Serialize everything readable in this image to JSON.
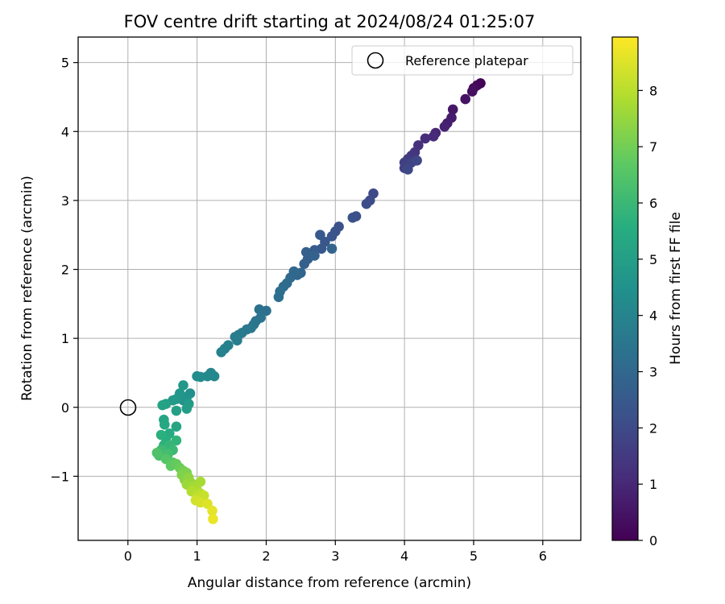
{
  "chart_data": {
    "type": "scatter",
    "title": "FOV centre drift starting at 2024/08/24 01:25:07",
    "xlabel": "Angular distance from reference (arcmin)",
    "ylabel": "Rotation from reference (arcmin)",
    "xlim": [
      -0.72,
      6.55
    ],
    "ylim": [
      -1.93,
      5.37
    ],
    "xticks": [
      0,
      1,
      2,
      3,
      4,
      5,
      6
    ],
    "yticks": [
      -1,
      0,
      1,
      2,
      3,
      4,
      5
    ],
    "xtick_labels": [
      "0",
      "1",
      "2",
      "3",
      "4",
      "5",
      "6"
    ],
    "ytick_labels": [
      "−1",
      "0",
      "1",
      "2",
      "3",
      "4",
      "5"
    ],
    "grid": true,
    "colormap": "viridis",
    "colorbar": {
      "label": "Hours from first FF file",
      "min": 0,
      "max": 8.95,
      "ticks": [
        0,
        1,
        2,
        3,
        4,
        5,
        6,
        7,
        8
      ],
      "tick_labels": [
        "0",
        "1",
        "2",
        "3",
        "4",
        "5",
        "6",
        "7",
        "8"
      ]
    },
    "legend": {
      "placement": "top-right",
      "entries": [
        {
          "label": "Reference platepar",
          "marker": "open-circle",
          "color": "#000000"
        }
      ]
    },
    "reference_point": {
      "x": 0,
      "y": 0
    },
    "series": [
      {
        "points": [
          [
            5.1,
            4.7,
            0.05
          ],
          [
            5.05,
            4.67,
            0.15
          ],
          [
            5.0,
            4.63,
            0.25
          ],
          [
            4.98,
            4.58,
            0.35
          ],
          [
            4.88,
            4.47,
            0.45
          ],
          [
            4.7,
            4.32,
            0.55
          ],
          [
            4.68,
            4.2,
            0.65
          ],
          [
            4.62,
            4.12,
            0.75
          ],
          [
            4.58,
            4.07,
            0.85
          ],
          [
            4.45,
            3.98,
            0.95
          ],
          [
            4.42,
            3.93,
            1.05
          ],
          [
            4.3,
            3.9,
            1.15
          ],
          [
            4.2,
            3.8,
            1.25
          ],
          [
            4.15,
            3.7,
            1.35
          ],
          [
            4.1,
            3.65,
            1.45
          ],
          [
            4.05,
            3.6,
            1.55
          ],
          [
            4.0,
            3.55,
            1.65
          ],
          [
            4.0,
            3.47,
            1.72
          ],
          [
            4.1,
            3.55,
            1.8
          ],
          [
            4.18,
            3.58,
            1.9
          ],
          [
            4.05,
            3.45,
            1.95
          ],
          [
            3.55,
            3.1,
            2.0
          ],
          [
            3.5,
            3.0,
            2.05
          ],
          [
            3.45,
            2.95,
            2.1
          ],
          [
            3.3,
            2.77,
            2.15
          ],
          [
            3.25,
            2.75,
            2.2
          ],
          [
            3.05,
            2.62,
            2.25
          ],
          [
            3.0,
            2.55,
            2.3
          ],
          [
            2.95,
            2.48,
            2.35
          ],
          [
            2.85,
            2.4,
            2.4
          ],
          [
            2.8,
            2.3,
            2.45
          ],
          [
            2.78,
            2.5,
            2.5
          ],
          [
            2.7,
            2.28,
            2.55
          ],
          [
            2.65,
            2.22,
            2.6
          ],
          [
            2.6,
            2.15,
            2.65
          ],
          [
            2.58,
            2.25,
            2.7
          ],
          [
            2.55,
            2.08,
            2.75
          ],
          [
            2.7,
            2.2,
            2.8
          ],
          [
            2.95,
            2.3,
            2.85
          ],
          [
            2.5,
            1.95,
            2.9
          ],
          [
            2.45,
            1.92,
            2.95
          ],
          [
            2.4,
            1.97,
            3.0
          ],
          [
            2.35,
            1.88,
            3.05
          ],
          [
            2.3,
            1.8,
            3.1
          ],
          [
            2.25,
            1.75,
            3.15
          ],
          [
            2.2,
            1.68,
            3.2
          ],
          [
            2.18,
            1.6,
            3.25
          ],
          [
            2.0,
            1.4,
            3.3
          ],
          [
            1.9,
            1.42,
            3.35
          ],
          [
            1.92,
            1.3,
            3.4
          ],
          [
            1.85,
            1.25,
            3.45
          ],
          [
            1.82,
            1.2,
            3.5
          ],
          [
            1.78,
            1.15,
            3.55
          ],
          [
            1.72,
            1.13,
            3.6
          ],
          [
            1.65,
            1.08,
            3.65
          ],
          [
            1.6,
            1.05,
            3.7
          ],
          [
            1.55,
            1.02,
            3.75
          ],
          [
            1.58,
            0.97,
            3.8
          ],
          [
            1.45,
            0.9,
            3.85
          ],
          [
            1.4,
            0.85,
            3.9
          ],
          [
            1.35,
            0.8,
            3.95
          ],
          [
            1.2,
            0.5,
            4.1
          ],
          [
            1.25,
            0.45,
            4.15
          ],
          [
            1.15,
            0.45,
            4.2
          ],
          [
            1.05,
            0.44,
            4.25
          ],
          [
            1.0,
            0.45,
            4.3
          ],
          [
            0.9,
            0.2,
            4.4
          ],
          [
            0.85,
            0.15,
            4.5
          ],
          [
            0.8,
            0.1,
            4.6
          ],
          [
            0.75,
            0.2,
            4.65
          ],
          [
            0.8,
            0.32,
            4.7
          ],
          [
            0.7,
            0.12,
            4.75
          ],
          [
            0.65,
            0.1,
            4.8
          ],
          [
            0.88,
            0.05,
            4.85
          ],
          [
            0.85,
            -0.02,
            4.95
          ],
          [
            0.7,
            -0.05,
            5.0
          ],
          [
            0.55,
            0.05,
            5.05
          ],
          [
            0.5,
            0.03,
            5.15
          ],
          [
            0.7,
            -0.28,
            5.2
          ],
          [
            0.52,
            -0.18,
            5.25
          ],
          [
            0.53,
            -0.25,
            5.35
          ],
          [
            0.6,
            -0.38,
            5.45
          ],
          [
            0.55,
            -0.45,
            5.55
          ],
          [
            0.48,
            -0.4,
            5.65
          ],
          [
            0.52,
            -0.55,
            5.7
          ],
          [
            0.7,
            -0.48,
            5.8
          ],
          [
            0.6,
            -0.55,
            5.9
          ],
          [
            0.65,
            -0.62,
            6.0
          ],
          [
            0.48,
            -0.62,
            6.1
          ],
          [
            0.58,
            -0.68,
            6.2
          ],
          [
            0.45,
            -0.7,
            6.3
          ],
          [
            0.42,
            -0.66,
            6.4
          ],
          [
            0.55,
            -0.75,
            6.5
          ],
          [
            0.65,
            -0.8,
            6.6
          ],
          [
            0.62,
            -0.85,
            6.7
          ],
          [
            0.7,
            -0.82,
            6.8
          ],
          [
            0.75,
            -0.88,
            6.9
          ],
          [
            0.8,
            -0.92,
            7.0
          ],
          [
            0.85,
            -0.95,
            7.1
          ],
          [
            0.78,
            -0.98,
            7.2
          ],
          [
            0.82,
            -1.05,
            7.3
          ],
          [
            0.88,
            -1.02,
            7.4
          ],
          [
            0.92,
            -1.1,
            7.5
          ],
          [
            0.85,
            -1.12,
            7.6
          ],
          [
            0.95,
            -1.15,
            7.7
          ],
          [
            1.05,
            -1.08,
            7.75
          ],
          [
            1.0,
            -1.2,
            7.8
          ],
          [
            0.92,
            -1.22,
            7.9
          ],
          [
            1.05,
            -1.25,
            8.0
          ],
          [
            1.0,
            -1.3,
            8.1
          ],
          [
            1.1,
            -1.28,
            8.2
          ],
          [
            0.98,
            -1.35,
            8.3
          ],
          [
            1.05,
            -1.38,
            8.4
          ],
          [
            1.15,
            -1.4,
            8.5
          ],
          [
            1.22,
            -1.5,
            8.6
          ],
          [
            1.23,
            -1.62,
            8.7
          ]
        ]
      }
    ]
  }
}
